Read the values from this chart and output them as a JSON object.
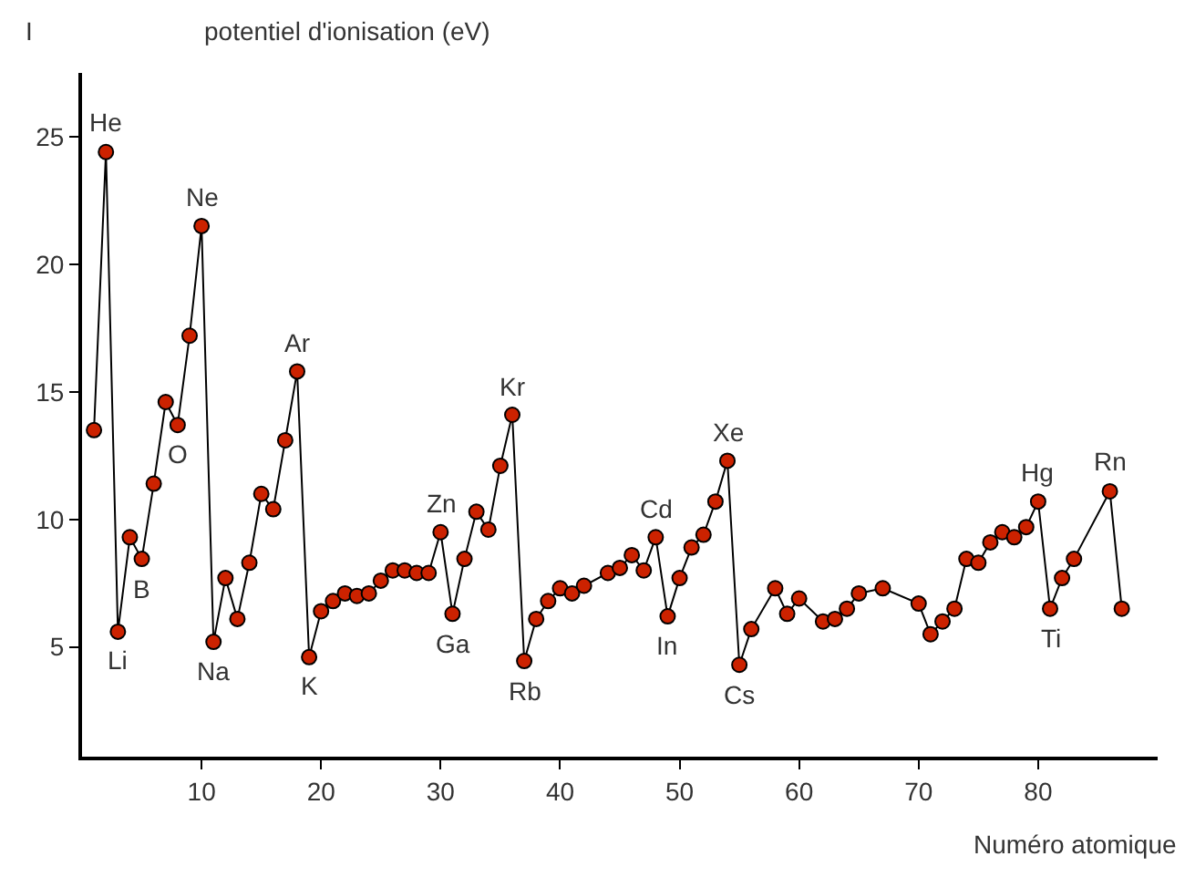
{
  "chart_data": {
    "type": "line",
    "xlabel": "Numéro atomique",
    "ylabel": "potentiel d'ionisation (eV)",
    "x": [
      1,
      2,
      3,
      4,
      5,
      6,
      7,
      8,
      9,
      10,
      11,
      12,
      13,
      14,
      15,
      16,
      17,
      18,
      19,
      20,
      21,
      22,
      23,
      24,
      25,
      26,
      27,
      28,
      29,
      30,
      31,
      32,
      33,
      34,
      35,
      36,
      37,
      38,
      39,
      40,
      41,
      42,
      44,
      45,
      46,
      47,
      48,
      49,
      50,
      51,
      52,
      53,
      54,
      55,
      56,
      58,
      59,
      60,
      62,
      63,
      64,
      65,
      67,
      70,
      71,
      72,
      73,
      74,
      75,
      76,
      77,
      78,
      79,
      80,
      81,
      82,
      83,
      86,
      87
    ],
    "series": [
      {
        "color": "#cc2200",
        "values": [
          13.5,
          24.4,
          5.6,
          9.3,
          8.45,
          11.4,
          14.6,
          13.7,
          17.2,
          21.5,
          5.2,
          7.7,
          6.1,
          8.3,
          11.0,
          10.4,
          13.1,
          15.8,
          4.6,
          6.4,
          6.8,
          7.1,
          7.0,
          7.1,
          7.6,
          8.0,
          8.0,
          7.9,
          7.9,
          9.5,
          6.3,
          8.45,
          10.3,
          9.6,
          12.1,
          14.1,
          4.45,
          6.1,
          6.8,
          7.3,
          7.1,
          7.4,
          7.9,
          8.1,
          8.6,
          8.0,
          9.3,
          6.2,
          7.7,
          8.9,
          9.4,
          10.7,
          12.3,
          4.3,
          5.7,
          7.3,
          6.3,
          6.9,
          6.0,
          6.1,
          6.5,
          7.1,
          7.3,
          6.7,
          5.5,
          6.0,
          6.5,
          8.45,
          8.3,
          9.1,
          9.5,
          9.3,
          9.7,
          10.7,
          6.5,
          7.7,
          8.45,
          11.1,
          6.5
        ]
      }
    ],
    "xlim": [
      0,
      90
    ],
    "xticks": [
      10,
      20,
      30,
      40,
      50,
      60,
      70,
      80
    ],
    "ylim": [
      0.7,
      27.5
    ],
    "yticks": [
      5,
      10,
      15,
      20,
      25
    ],
    "marker": "circle",
    "line_style": "solid",
    "annotations": [
      "I",
      {
        "text": "He",
        "x": 2,
        "y": 24.4
      },
      {
        "text": "Li",
        "x": 3,
        "y": 5.6
      },
      {
        "text": "B",
        "x": 5,
        "y": 8.45
      },
      {
        "text": "O",
        "x": 8,
        "y": 13.7
      },
      {
        "text": "Ne",
        "x": 10,
        "y": 21.5
      },
      {
        "text": "Na",
        "x": 11,
        "y": 5.2
      },
      {
        "text": "Ar",
        "x": 18,
        "y": 15.8
      },
      {
        "text": "K",
        "x": 19,
        "y": 4.6
      },
      {
        "text": "Zn",
        "x": 30,
        "y": 9.5
      },
      {
        "text": "Ga",
        "x": 31,
        "y": 6.3
      },
      {
        "text": "Kr",
        "x": 36,
        "y": 14.1
      },
      {
        "text": "Rb",
        "x": 37,
        "y": 4.45
      },
      {
        "text": "Cd",
        "x": 48,
        "y": 9.3
      },
      {
        "text": "In",
        "x": 49,
        "y": 6.2
      },
      {
        "text": "Xe",
        "x": 54,
        "y": 12.3
      },
      {
        "text": "Cs",
        "x": 55,
        "y": 4.3
      },
      {
        "text": "Hg",
        "x": 80,
        "y": 10.7
      },
      {
        "text": "Ti",
        "x": 81,
        "y": 6.5
      },
      {
        "text": "Rn",
        "x": 86,
        "y": 11.1
      }
    ]
  }
}
